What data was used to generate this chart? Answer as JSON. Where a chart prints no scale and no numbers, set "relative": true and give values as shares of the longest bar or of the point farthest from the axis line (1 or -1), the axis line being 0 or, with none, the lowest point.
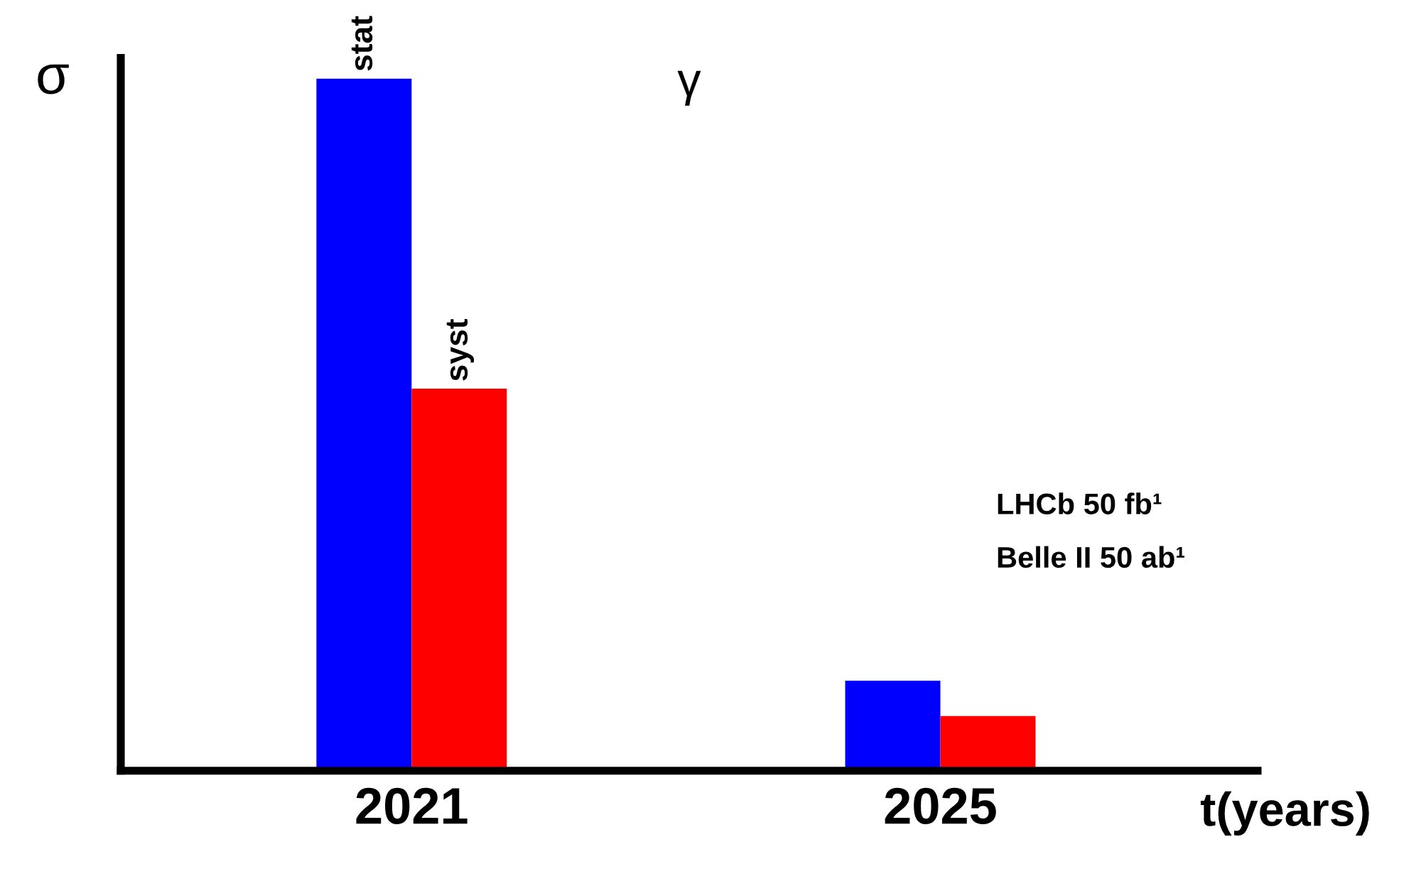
{
  "chart_data": {
    "type": "bar",
    "title": "γ",
    "ylabel": "σ",
    "xlabel": "t(years)",
    "categories": [
      "2021",
      "2025"
    ],
    "relative": true,
    "series": [
      {
        "name": "stat",
        "color": "#0000ff",
        "values": [
          1,
          0.13
        ]
      },
      {
        "name": "syst",
        "color": "#ff0000",
        "values": [
          0.552,
          0.079
        ]
      }
    ],
    "annotations": [
      "LHCb 50 fb¹",
      "Belle II 50 ab¹"
    ],
    "grid": false,
    "legend": false
  }
}
